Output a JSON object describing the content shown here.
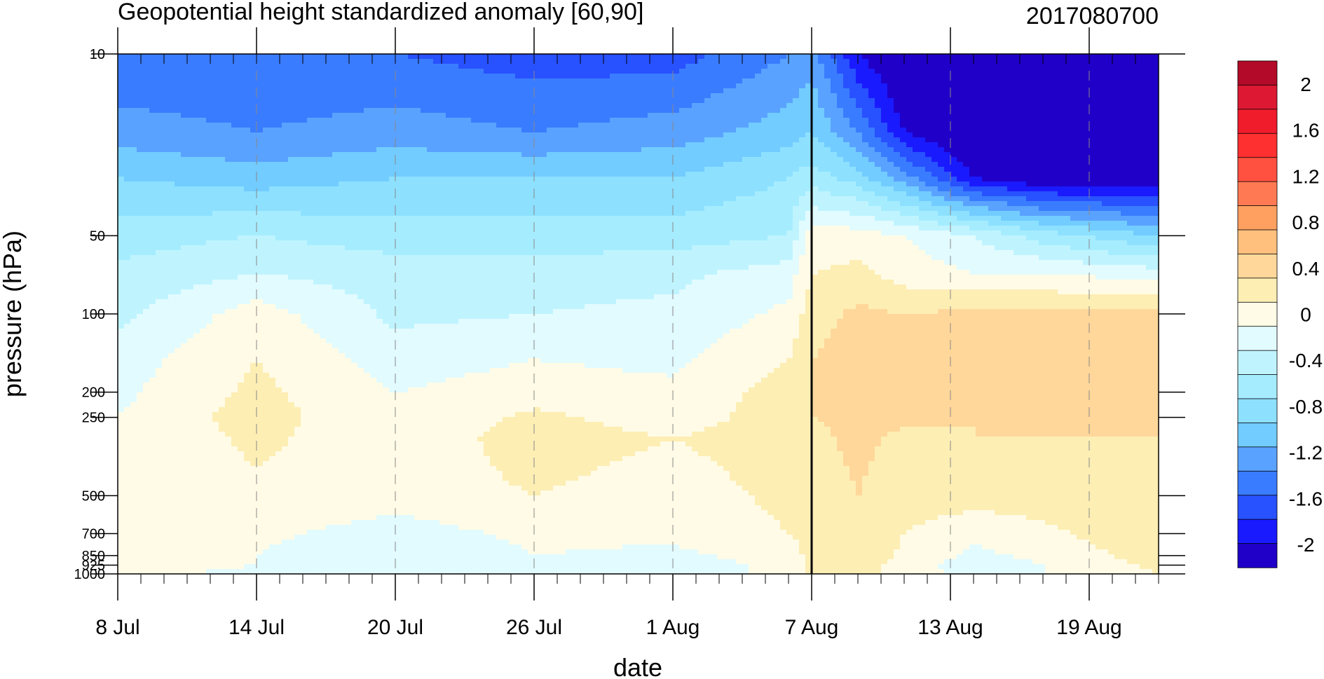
{
  "chart_data": {
    "type": "heatmap",
    "title": "Geopotential height standardized anomaly [60,90]",
    "timestamp_label": "2017080700",
    "xlabel": "date",
    "ylabel": "pressure (hPa)",
    "x_range": [
      "2017-07-08",
      "2017-08-22"
    ],
    "x_tick_labels": [
      "8 Jul",
      "14 Jul",
      "20 Jul",
      "26 Jul",
      "1 Aug",
      "7 Aug",
      "13 Aug",
      "19 Aug"
    ],
    "x_tick_dates": [
      "2017-07-08",
      "2017-07-14",
      "2017-07-20",
      "2017-07-26",
      "2017-08-01",
      "2017-08-07",
      "2017-08-13",
      "2017-08-19"
    ],
    "y_scale": "log",
    "y_range": [
      1000,
      10
    ],
    "y_ticks": [
      10,
      50,
      100,
      200,
      250,
      500,
      700,
      850,
      925,
      1000
    ],
    "y_tick_labels": [
      "10",
      "50",
      "100",
      "200",
      "250",
      "500",
      "700",
      "850",
      "925",
      "1000"
    ],
    "vertical_marker_date": "2017-08-07",
    "colorbar": {
      "labels": [
        "2",
        "1.6",
        "1.2",
        "0.8",
        "0.4",
        "0",
        "-0.4",
        "-0.8",
        "-1.2",
        "-1.6",
        "-2"
      ],
      "label_values": [
        2,
        1.6,
        1.2,
        0.8,
        0.4,
        0,
        -0.4,
        -0.8,
        -1.2,
        -1.6,
        -2
      ],
      "levels": [
        -2.2,
        -2.0,
        -1.8,
        -1.6,
        -1.4,
        -1.2,
        -1.0,
        -0.8,
        -0.6,
        -0.4,
        -0.2,
        0,
        0.2,
        0.4,
        0.6,
        0.8,
        1.0,
        1.2,
        1.4,
        1.6,
        1.8,
        2.0,
        2.2
      ],
      "colors": [
        "#2000c8",
        "#1a1aff",
        "#2851ff",
        "#3a7cff",
        "#5aa2ff",
        "#72ccff",
        "#8de1ff",
        "#a6ecff",
        "#bff4ff",
        "#e2fbff",
        "#fffbe6",
        "#fdeeb4",
        "#ffd79a",
        "#ffc07e",
        "#ffa060",
        "#ff7a52",
        "#ff5040",
        "#ff3030",
        "#f01c2c",
        "#dd1832",
        "#b20a28"
      ]
    },
    "pressure_levels": [
      10,
      20,
      30,
      50,
      70,
      100,
      150,
      200,
      250,
      300,
      500,
      700,
      850,
      925,
      1000
    ],
    "dates": [
      "2017-07-08",
      "2017-07-14",
      "2017-07-20",
      "2017-07-26",
      "2017-08-01",
      "2017-08-06",
      "2017-08-07",
      "2017-08-09",
      "2017-08-11",
      "2017-08-14",
      "2017-08-17",
      "2017-08-22"
    ],
    "values": [
      [
        -1.6,
        -1.6,
        -1.6,
        -1.7,
        -1.7,
        -1.4,
        -1.3,
        -2.0,
        -2.3,
        -2.3,
        -2.3,
        -2.3
      ],
      [
        -1.3,
        -1.4,
        -1.3,
        -1.4,
        -1.3,
        -1.1,
        -1.0,
        -1.4,
        -2.0,
        -2.3,
        -2.3,
        -2.3
      ],
      [
        -1.0,
        -1.1,
        -1.0,
        -1.0,
        -1.0,
        -0.8,
        -0.7,
        -0.9,
        -1.3,
        -2.0,
        -2.2,
        -2.2
      ],
      [
        -0.7,
        -0.6,
        -0.7,
        -0.7,
        -0.7,
        -0.6,
        -0.1,
        -0.1,
        -0.2,
        -0.4,
        -0.7,
        -1.0
      ],
      [
        -0.55,
        -0.4,
        -0.5,
        -0.5,
        -0.45,
        -0.3,
        0.0,
        0.05,
        -0.1,
        -0.2,
        -0.2,
        -0.3
      ],
      [
        -0.45,
        -0.1,
        -0.45,
        -0.4,
        -0.35,
        -0.15,
        0.1,
        0.25,
        0.2,
        0.25,
        0.25,
        0.3
      ],
      [
        -0.3,
        0.0,
        -0.3,
        -0.2,
        -0.25,
        0.0,
        0.2,
        0.3,
        0.3,
        0.3,
        0.3,
        0.3
      ],
      [
        -0.25,
        0.05,
        -0.2,
        -0.1,
        -0.15,
        0.1,
        0.2,
        0.25,
        0.25,
        0.25,
        0.25,
        0.25
      ],
      [
        -0.2,
        0.1,
        -0.2,
        0.05,
        -0.1,
        0.1,
        0.2,
        0.25,
        0.25,
        0.2,
        0.25,
        0.2
      ],
      [
        -0.2,
        0.05,
        -0.15,
        0.1,
        0.0,
        0.1,
        0.15,
        0.25,
        0.15,
        0.2,
        0.2,
        0.2
      ],
      [
        -0.15,
        -0.05,
        -0.1,
        0.0,
        -0.1,
        0.05,
        0.1,
        0.2,
        0.1,
        0.1,
        0.1,
        0.2
      ],
      [
        -0.1,
        -0.15,
        -0.3,
        -0.15,
        -0.15,
        0.0,
        0.1,
        0.2,
        0.0,
        -0.15,
        -0.05,
        0.15
      ],
      [
        -0.1,
        -0.2,
        -0.4,
        -0.2,
        -0.25,
        -0.1,
        0.05,
        0.15,
        -0.05,
        -0.25,
        -0.15,
        0.1
      ],
      [
        -0.1,
        -0.2,
        -0.35,
        -0.25,
        -0.3,
        -0.15,
        0.05,
        0.1,
        -0.1,
        -0.3,
        -0.2,
        0.05
      ],
      [
        -0.15,
        -0.25,
        -0.3,
        -0.3,
        -0.3,
        -0.15,
        0.05,
        0.1,
        -0.1,
        -0.25,
        -0.2,
        0.0
      ]
    ]
  }
}
